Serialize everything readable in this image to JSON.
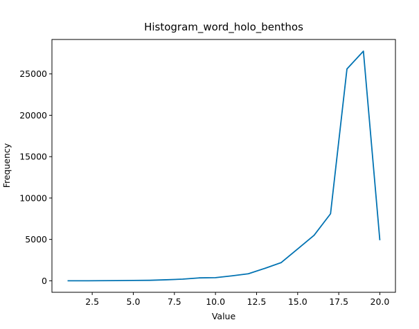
{
  "chart_data": {
    "type": "line",
    "title": "Histogram_word_holo_benthos",
    "xlabel": "Value",
    "ylabel": "Frequency",
    "xlim": [
      0.05,
      20.95
    ],
    "ylim": [
      -1390,
      29160
    ],
    "xticks": [
      2.5,
      5.0,
      7.5,
      10.0,
      12.5,
      15.0,
      17.5,
      20.0
    ],
    "xtick_labels": [
      "2.5",
      "5.0",
      "7.5",
      "10.0",
      "12.5",
      "15.0",
      "17.5",
      "20.0"
    ],
    "yticks": [
      0,
      5000,
      10000,
      15000,
      20000,
      25000
    ],
    "ytick_labels": [
      "0",
      "5000",
      "10000",
      "15000",
      "20000",
      "25000"
    ],
    "grid": false,
    "line_color": "#0072b2",
    "series": [
      {
        "x": [
          1,
          2,
          3,
          4,
          5,
          6,
          7,
          8,
          9,
          10,
          11,
          12,
          13,
          14,
          15,
          16,
          17,
          18,
          19,
          20
        ],
        "values": [
          0,
          0,
          10,
          20,
          40,
          60,
          120,
          200,
          350,
          380,
          600,
          850,
          1500,
          2200,
          3850,
          5500,
          8100,
          25600,
          27750,
          4900
        ]
      }
    ]
  }
}
